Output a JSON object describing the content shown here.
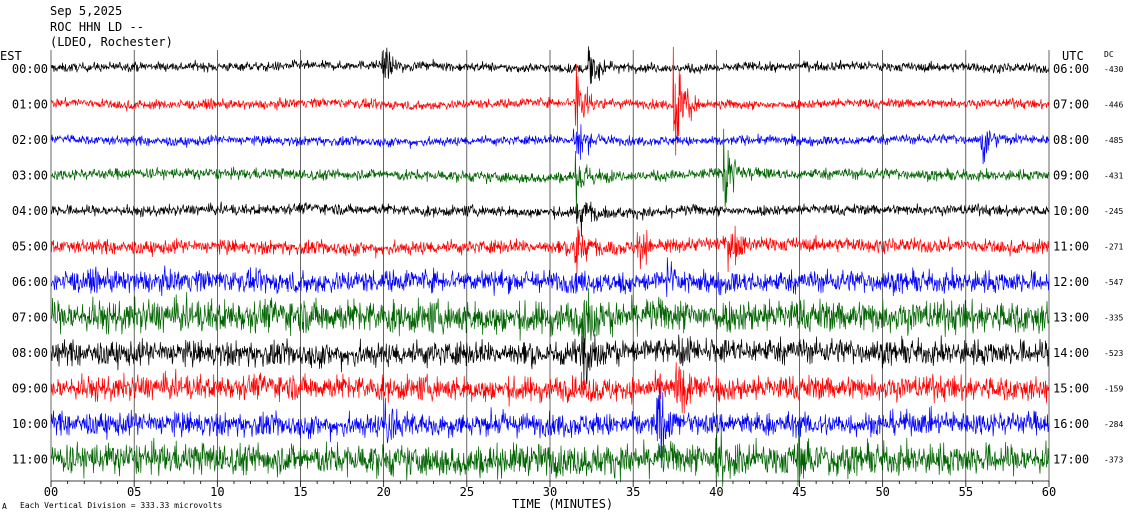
{
  "header": {
    "date": "Sep 5,2025",
    "station": "ROC HHN LD --",
    "network": "(LDEO, Rochester)"
  },
  "left_axis_title": "EST",
  "right_axis_title": "UTC",
  "dc_title": "DC",
  "x_axis_title": "TIME (MINUTES)",
  "footer_note": "Each Vertical Division =  333.33 microvolts",
  "footer_mark": "A",
  "colors": {
    "black": "#000000",
    "red": "#ff0000",
    "blue": "#0000ff",
    "green": "#006400",
    "grid": "#000000"
  },
  "chart_data": {
    "type": "line",
    "title": "Sep 5,2025 ROC HHN LD -- (LDEO, Rochester)",
    "xlabel": "TIME (MINUTES)",
    "xlim": [
      0,
      60
    ],
    "x_ticks": [
      "00",
      "05",
      "10",
      "15",
      "20",
      "25",
      "30",
      "35",
      "40",
      "45",
      "50",
      "55",
      "60"
    ],
    "grid": "vertical lines every 5 minutes",
    "vertical_division": "333.33 microvolts",
    "rows": [
      {
        "est": "00:00",
        "utc": "06:00",
        "dc": "-430",
        "color": "black",
        "noise": 0.6,
        "events": [
          {
            "t": 20.0,
            "amp": 1.4
          },
          {
            "t": 32.4,
            "amp": 1.8
          }
        ]
      },
      {
        "est": "01:00",
        "utc": "07:00",
        "dc": "-446",
        "color": "red",
        "noise": 0.6,
        "events": [
          {
            "t": 31.6,
            "amp": 2.5
          },
          {
            "t": 37.5,
            "amp": 4.0
          }
        ]
      },
      {
        "est": "02:00",
        "utc": "08:00",
        "dc": "-485",
        "color": "blue",
        "noise": 0.6,
        "events": [
          {
            "t": 31.5,
            "amp": 2.0
          },
          {
            "t": 56.0,
            "amp": 1.2
          }
        ]
      },
      {
        "est": "03:00",
        "utc": "09:00",
        "dc": "-431",
        "color": "green",
        "noise": 0.7,
        "events": [
          {
            "t": 31.6,
            "amp": 1.8
          },
          {
            "t": 40.5,
            "amp": 2.8
          }
        ]
      },
      {
        "est": "04:00",
        "utc": "10:00",
        "dc": "-245",
        "color": "black",
        "noise": 0.7,
        "events": [
          {
            "t": 31.7,
            "amp": 1.8
          }
        ]
      },
      {
        "est": "05:00",
        "utc": "11:00",
        "dc": "-271",
        "color": "red",
        "noise": 0.9,
        "events": [
          {
            "t": 31.5,
            "amp": 2.2
          },
          {
            "t": 35.3,
            "amp": 2.0
          },
          {
            "t": 40.8,
            "amp": 1.8
          }
        ]
      },
      {
        "est": "06:00",
        "utc": "12:00",
        "dc": "-547",
        "color": "blue",
        "noise": 1.4,
        "events": [
          {
            "t": 37.0,
            "amp": 1.6
          }
        ]
      },
      {
        "est": "07:00",
        "utc": "13:00",
        "dc": "-335",
        "color": "green",
        "noise": 2.1,
        "events": [
          {
            "t": 32.0,
            "amp": 2.0
          }
        ]
      },
      {
        "est": "08:00",
        "utc": "14:00",
        "dc": "-523",
        "color": "black",
        "noise": 1.6,
        "events": [
          {
            "t": 32.0,
            "amp": 1.8
          },
          {
            "t": 38.0,
            "amp": 1.6
          }
        ]
      },
      {
        "est": "09:00",
        "utc": "15:00",
        "dc": "-159",
        "color": "red",
        "noise": 1.6,
        "events": [
          {
            "t": 37.6,
            "amp": 2.0
          }
        ]
      },
      {
        "est": "10:00",
        "utc": "16:00",
        "dc": "-284",
        "color": "blue",
        "noise": 1.5,
        "events": [
          {
            "t": 20.2,
            "amp": 2.0
          },
          {
            "t": 36.5,
            "amp": 2.4
          }
        ]
      },
      {
        "est": "11:00",
        "utc": "17:00",
        "dc": "-373",
        "color": "green",
        "noise": 2.0,
        "events": [
          {
            "t": 40.0,
            "amp": 2.2
          },
          {
            "t": 45.0,
            "amp": 1.6
          }
        ]
      }
    ]
  }
}
